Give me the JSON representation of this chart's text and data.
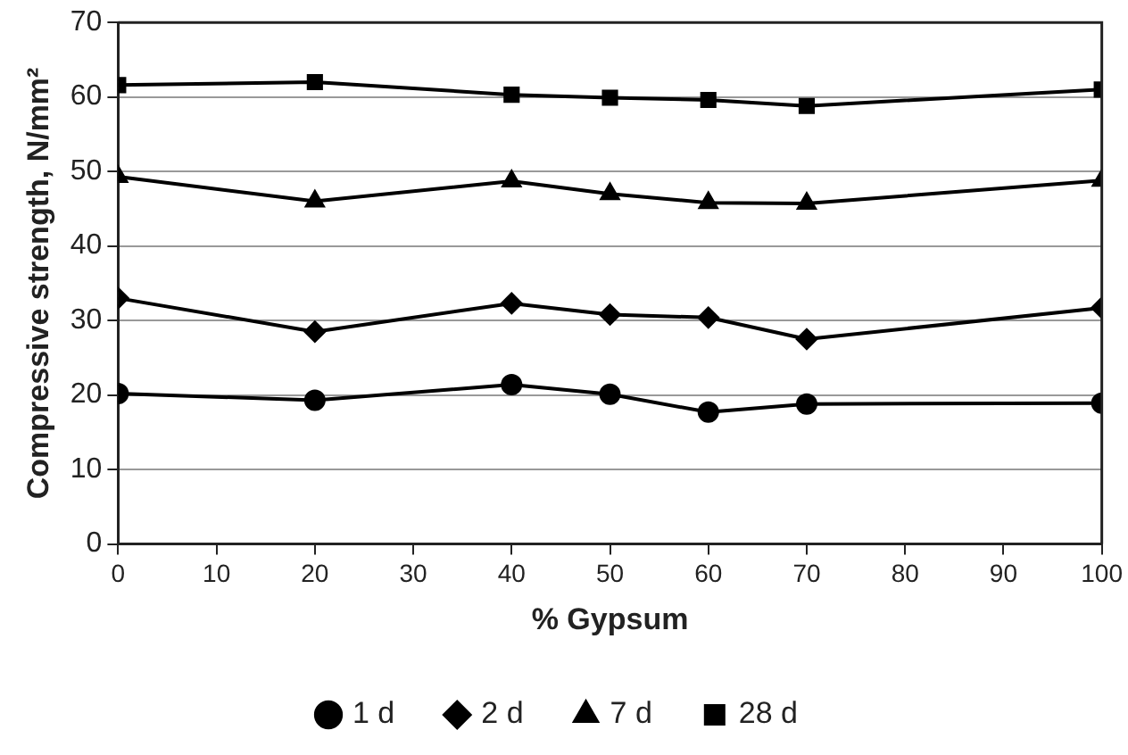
{
  "chart_data": {
    "type": "line",
    "xlabel": "% Gypsum",
    "ylabel": "Compressive strength, N/mm²",
    "x": [
      0,
      20,
      40,
      50,
      60,
      70,
      100
    ],
    "series": [
      {
        "name": "1 d",
        "color": "#000000",
        "marker": "circle",
        "values": [
          20.2,
          19.3,
          21.4,
          20.1,
          17.7,
          18.8,
          18.9
        ]
      },
      {
        "name": "2 d",
        "color": "#000000",
        "marker": "diamond",
        "values": [
          33.0,
          28.5,
          32.3,
          30.8,
          30.4,
          27.5,
          31.7
        ]
      },
      {
        "name": "7 d",
        "color": "#000000",
        "marker": "triangle",
        "values": [
          49.3,
          46.0,
          48.7,
          47.0,
          45.8,
          45.7,
          48.8
        ]
      },
      {
        "name": "28 d",
        "color": "#000000",
        "marker": "square",
        "values": [
          61.6,
          62.0,
          60.3,
          59.9,
          59.6,
          58.8,
          61.0
        ]
      }
    ],
    "xlim": [
      0,
      100
    ],
    "xticks": [
      0,
      10,
      20,
      30,
      40,
      50,
      60,
      70,
      80,
      90,
      100
    ],
    "ylim": [
      0,
      70
    ],
    "yticks": [
      0,
      10,
      20,
      30,
      40,
      50,
      60,
      70
    ],
    "grid": "y",
    "legend": "bottom",
    "line_style": "solid"
  }
}
